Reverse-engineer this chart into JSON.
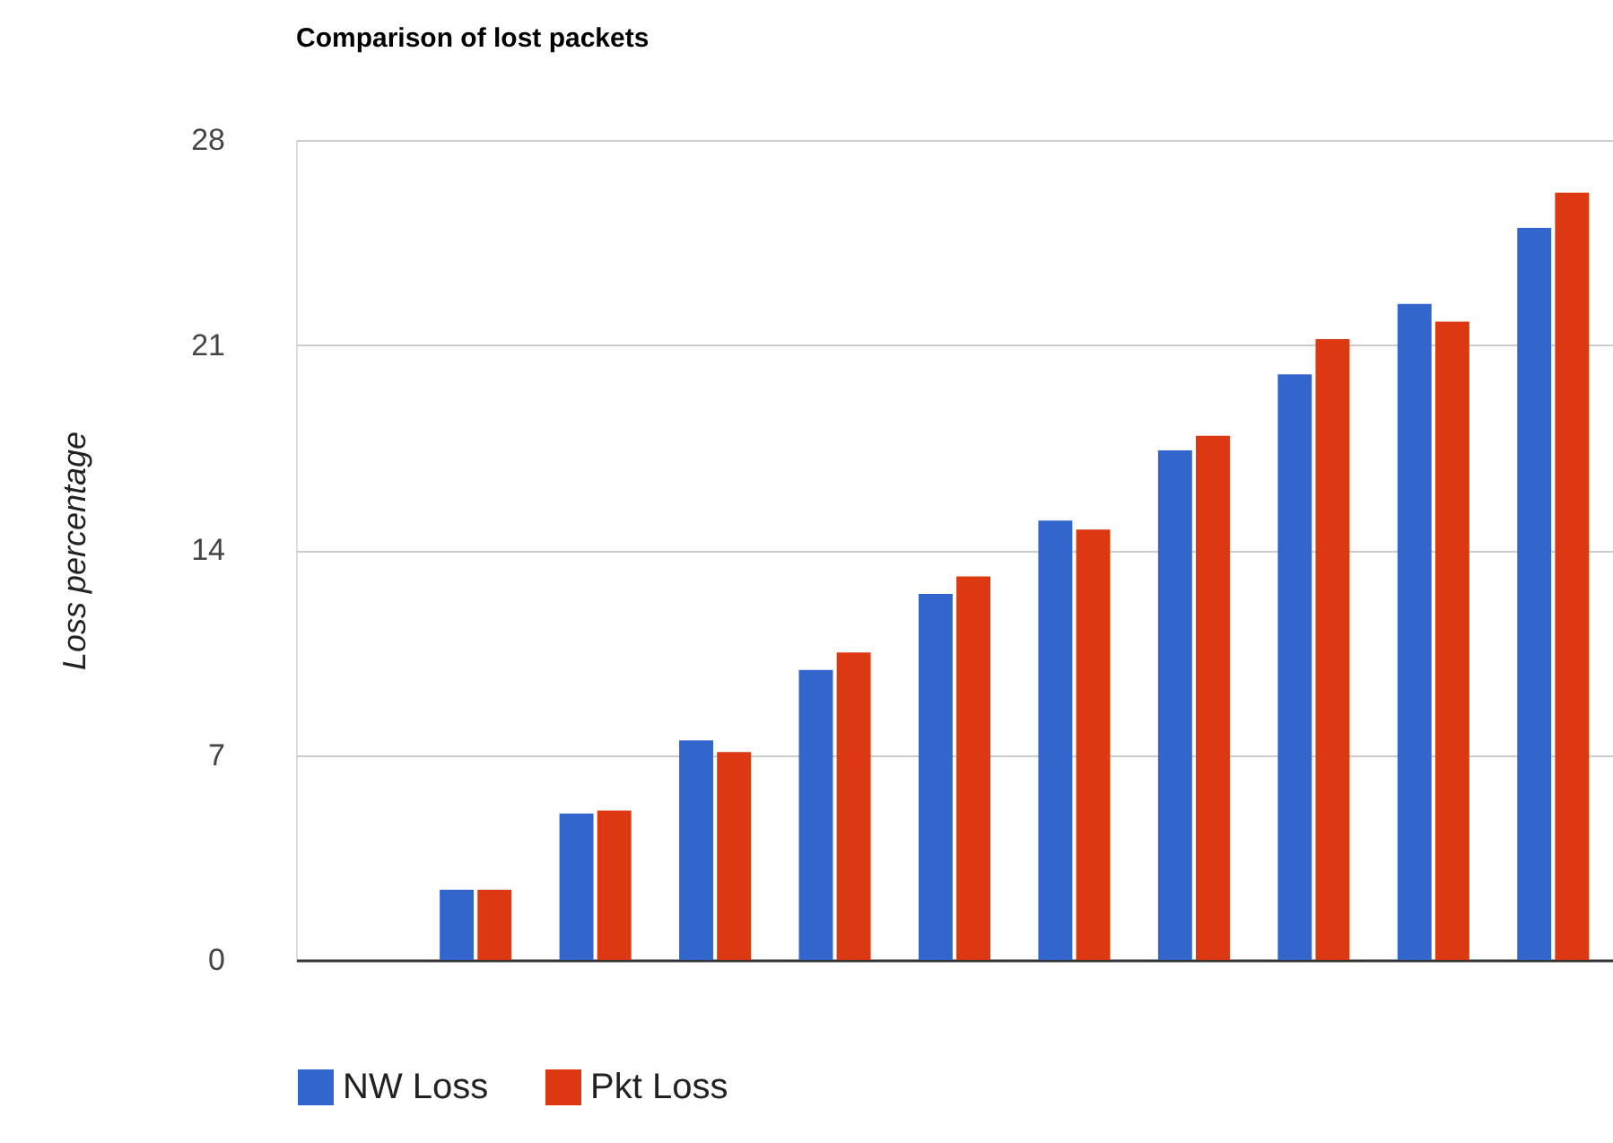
{
  "chart_data": {
    "type": "bar",
    "title": "Comparison of lost packets",
    "ylabel": "Loss percentage",
    "categories": [
      null,
      null,
      null,
      null,
      null,
      null,
      null,
      null,
      null,
      null,
      null
    ],
    "series": [
      {
        "name": "NW Loss",
        "color": "#3366cc",
        "values": [
          0,
          2.4,
          5.0,
          7.5,
          9.9,
          12.5,
          15.0,
          17.4,
          20.0,
          22.4,
          25.0
        ]
      },
      {
        "name": "Pkt Loss",
        "color": "#dc3912",
        "values": [
          0,
          2.4,
          5.1,
          7.1,
          10.5,
          13.1,
          14.7,
          17.9,
          21.2,
          21.8,
          26.2
        ]
      }
    ],
    "ylim": [
      0,
      28
    ],
    "yticks": [
      0,
      7,
      14,
      21,
      28
    ],
    "grid": "y",
    "legend": "bottom",
    "tick_labels": "y"
  }
}
